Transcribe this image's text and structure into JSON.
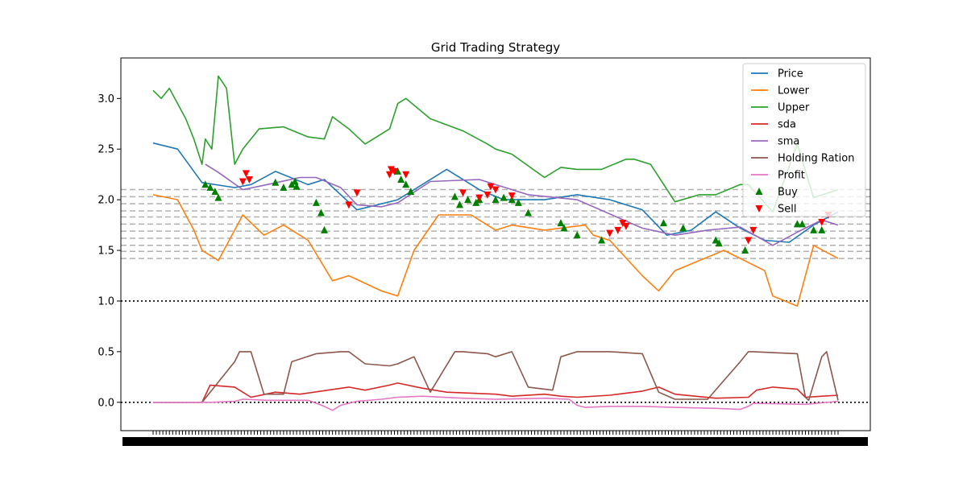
{
  "chart_data": {
    "type": "line",
    "title": "Grid Trading Strategy",
    "xlabel": "",
    "ylabel": "",
    "ylim": [
      -0.28,
      3.4
    ],
    "y_ticks": [
      "0.0",
      "0.5",
      "1.0",
      "1.5",
      "2.0",
      "2.5",
      "3.0"
    ],
    "x_tick_labels_note": "dense overlapping date tick labels (illegible)",
    "n_points": 420,
    "grid_levels": [
      1.42,
      1.49,
      1.55,
      1.62,
      1.69,
      1.76,
      1.83,
      1.89,
      1.96,
      2.03,
      2.1
    ],
    "reference_lines": [
      1.0,
      0.0
    ],
    "legend": {
      "placement": "top-right"
    },
    "series": [
      {
        "name": "Price",
        "color": "#1f77b4",
        "x": [
          0,
          15,
          30,
          50,
          60,
          75,
          95,
          105,
          125,
          150,
          180,
          200,
          215,
          240,
          260,
          280,
          300,
          315,
          330,
          345,
          360,
          375,
          390,
          405,
          420
        ],
        "values": [
          2.56,
          2.5,
          2.17,
          2.12,
          2.15,
          2.28,
          2.15,
          2.2,
          1.9,
          2.0,
          2.3,
          2.1,
          2.0,
          2.0,
          2.05,
          2.0,
          1.9,
          1.65,
          1.7,
          1.88,
          1.72,
          1.6,
          1.58,
          1.75,
          1.88
        ]
      },
      {
        "name": "Lower",
        "color": "#ff7f0e",
        "x": [
          0,
          15,
          25,
          30,
          40,
          55,
          68,
          80,
          95,
          110,
          120,
          140,
          150,
          160,
          175,
          195,
          210,
          220,
          240,
          265,
          270,
          280,
          300,
          310,
          320,
          335,
          350,
          375,
          380,
          395,
          405,
          420
        ],
        "values": [
          2.05,
          2.0,
          1.7,
          1.5,
          1.4,
          1.85,
          1.65,
          1.75,
          1.6,
          1.2,
          1.25,
          1.1,
          1.05,
          1.5,
          1.85,
          1.85,
          1.7,
          1.75,
          1.7,
          1.75,
          1.65,
          1.6,
          1.25,
          1.1,
          1.3,
          1.4,
          1.5,
          1.3,
          1.05,
          0.95,
          1.55,
          1.42
        ]
      },
      {
        "name": "Upper",
        "color": "#2ca02c",
        "x": [
          0,
          5,
          10,
          20,
          25,
          30,
          32,
          36,
          40,
          45,
          50,
          55,
          65,
          80,
          95,
          105,
          110,
          120,
          130,
          145,
          150,
          155,
          170,
          190,
          205,
          210,
          220,
          240,
          250,
          260,
          275,
          290,
          295,
          305,
          320,
          335,
          345,
          360,
          365,
          380,
          395,
          405,
          420
        ],
        "values": [
          3.08,
          3.0,
          3.1,
          2.8,
          2.6,
          2.35,
          2.6,
          2.5,
          3.22,
          3.1,
          2.35,
          2.5,
          2.7,
          2.72,
          2.62,
          2.6,
          2.82,
          2.7,
          2.55,
          2.7,
          2.95,
          3.0,
          2.8,
          2.68,
          2.55,
          2.5,
          2.45,
          2.22,
          2.32,
          2.3,
          2.3,
          2.4,
          2.4,
          2.35,
          1.98,
          2.05,
          2.05,
          2.15,
          2.15,
          1.88,
          2.55,
          2.02,
          2.1
        ]
      },
      {
        "name": "sda",
        "color": "#d62728",
        "x": [
          0,
          30,
          35,
          50,
          60,
          75,
          90,
          120,
          130,
          145,
          150,
          165,
          180,
          210,
          220,
          240,
          250,
          260,
          280,
          300,
          310,
          320,
          345,
          365,
          370,
          380,
          395,
          400,
          420
        ],
        "values": [
          0.0,
          0.0,
          0.17,
          0.15,
          0.05,
          0.1,
          0.08,
          0.15,
          0.12,
          0.17,
          0.19,
          0.14,
          0.1,
          0.08,
          0.06,
          0.08,
          0.06,
          0.05,
          0.07,
          0.11,
          0.15,
          0.08,
          0.04,
          0.05,
          0.12,
          0.15,
          0.13,
          0.05,
          0.07
        ]
      },
      {
        "name": "sma",
        "color": "#9467bd",
        "x": [
          32,
          40,
          55,
          70,
          90,
          100,
          115,
          125,
          140,
          150,
          170,
          200,
          230,
          260,
          300,
          320,
          340,
          360,
          380,
          395,
          410,
          420
        ],
        "values": [
          2.35,
          2.27,
          2.1,
          2.15,
          2.22,
          2.22,
          2.12,
          1.95,
          1.93,
          1.97,
          2.18,
          2.2,
          2.05,
          2.0,
          1.72,
          1.65,
          1.7,
          1.73,
          1.55,
          1.68,
          1.8,
          1.75
        ]
      },
      {
        "name": "Holding Ration",
        "color": "#8c564b",
        "x": [
          0,
          30,
          35,
          50,
          53,
          60,
          68,
          80,
          85,
          100,
          115,
          120,
          130,
          145,
          150,
          160,
          170,
          185,
          190,
          205,
          210,
          220,
          230,
          245,
          250,
          260,
          280,
          300,
          310,
          320,
          325,
          340,
          360,
          365,
          368,
          395,
          400,
          402,
          410,
          413,
          420
        ],
        "values": [
          0.0,
          0.0,
          0.1,
          0.4,
          0.5,
          0.5,
          0.08,
          0.08,
          0.4,
          0.48,
          0.5,
          0.5,
          0.38,
          0.36,
          0.38,
          0.45,
          0.1,
          0.5,
          0.5,
          0.48,
          0.45,
          0.5,
          0.15,
          0.12,
          0.45,
          0.5,
          0.5,
          0.48,
          0.1,
          0.03,
          0.03,
          0.03,
          0.4,
          0.5,
          0.5,
          0.48,
          0.05,
          0.02,
          0.45,
          0.5,
          0.02
        ]
      },
      {
        "name": "Profit",
        "color": "#e377c2",
        "x": [
          0,
          35,
          50,
          55,
          70,
          95,
          105,
          110,
          115,
          125,
          140,
          150,
          165,
          190,
          210,
          240,
          255,
          260,
          265,
          280,
          300,
          320,
          345,
          360,
          365,
          368,
          400,
          420
        ],
        "values": [
          0.0,
          0.0,
          0.01,
          0.03,
          0.02,
          0.02,
          -0.04,
          -0.08,
          -0.03,
          0.01,
          0.03,
          0.05,
          0.06,
          0.04,
          0.03,
          0.04,
          0.03,
          -0.03,
          -0.05,
          -0.04,
          -0.04,
          -0.05,
          -0.06,
          -0.07,
          -0.04,
          -0.01,
          -0.02,
          0.01
        ]
      }
    ],
    "markers": {
      "buy": {
        "name": "Buy",
        "color": "#008000",
        "points": [
          [
            32,
            2.15
          ],
          [
            35,
            2.12
          ],
          [
            38,
            2.08
          ],
          [
            40,
            2.02
          ],
          [
            75,
            2.17
          ],
          [
            80,
            2.12
          ],
          [
            85,
            2.15
          ],
          [
            87,
            2.18
          ],
          [
            88,
            2.13
          ],
          [
            100,
            1.97
          ],
          [
            103,
            1.87
          ],
          [
            105,
            1.7
          ],
          [
            150,
            2.28
          ],
          [
            152,
            2.2
          ],
          [
            155,
            2.15
          ],
          [
            158,
            2.08
          ],
          [
            185,
            2.03
          ],
          [
            188,
            1.95
          ],
          [
            193,
            2.0
          ],
          [
            198,
            1.97
          ],
          [
            200,
            2.0
          ],
          [
            210,
            2.0
          ],
          [
            215,
            2.02
          ],
          [
            220,
            2.0
          ],
          [
            224,
            1.97
          ],
          [
            230,
            1.87
          ],
          [
            250,
            1.77
          ],
          [
            252,
            1.72
          ],
          [
            260,
            1.65
          ],
          [
            275,
            1.6
          ],
          [
            313,
            1.77
          ],
          [
            325,
            1.72
          ],
          [
            345,
            1.6
          ],
          [
            347,
            1.57
          ],
          [
            363,
            1.5
          ],
          [
            395,
            1.76
          ],
          [
            398,
            1.76
          ],
          [
            405,
            1.7
          ],
          [
            410,
            1.7
          ]
        ]
      },
      "sell": {
        "name": "Sell",
        "color": "#ff0000",
        "points": [
          [
            55,
            2.18
          ],
          [
            57,
            2.26
          ],
          [
            59,
            2.2
          ],
          [
            120,
            1.95
          ],
          [
            125,
            2.07
          ],
          [
            145,
            2.25
          ],
          [
            146,
            2.3
          ],
          [
            148,
            2.28
          ],
          [
            155,
            2.25
          ],
          [
            190,
            2.07
          ],
          [
            200,
            2.02
          ],
          [
            205,
            2.05
          ],
          [
            207,
            2.13
          ],
          [
            210,
            2.1
          ],
          [
            220,
            2.04
          ],
          [
            280,
            1.67
          ],
          [
            285,
            1.7
          ],
          [
            288,
            1.77
          ],
          [
            290,
            1.74
          ],
          [
            365,
            1.6
          ],
          [
            368,
            1.7
          ],
          [
            410,
            1.78
          ],
          [
            414,
            1.85
          ]
        ]
      }
    }
  }
}
